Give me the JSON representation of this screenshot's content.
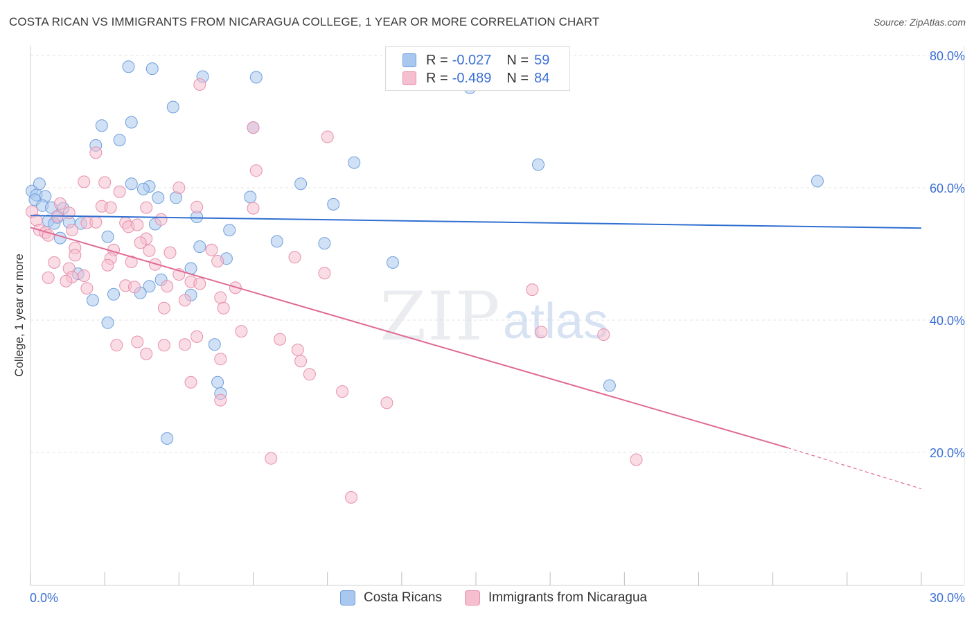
{
  "title": "COSTA RICAN VS IMMIGRANTS FROM NICARAGUA COLLEGE, 1 YEAR OR MORE CORRELATION CHART",
  "source": "Source: ZipAtlas.com",
  "watermark": {
    "zip": "ZIP",
    "atlas": "atlas"
  },
  "legend": {
    "row1": {
      "r_label": "R =",
      "r_value": "-0.027",
      "n_label": "N =",
      "n_value": "59"
    },
    "row2": {
      "r_label": "R =",
      "r_value": "-0.489",
      "n_label": "N =",
      "n_value": "84"
    }
  },
  "bottom_legend": {
    "series1": "Costa Ricans",
    "series2": "Immigrants from Nicaragua"
  },
  "colors": {
    "blue_fill": "#a9c8ef",
    "blue_stroke": "#6f9fdc",
    "blue_line": "#2f6fd0",
    "pink_fill": "#f6bfd0",
    "pink_stroke": "#e690ac",
    "pink_line": "#e06a94",
    "axis_text": "#3b6fd4",
    "grid": "#e3e3e3"
  },
  "chart_data": {
    "type": "scatter",
    "title": "COSTA RICAN VS IMMIGRANTS FROM NICARAGUA COLLEGE, 1 YEAR OR MORE CORRELATION CHART",
    "xlabel": "",
    "ylabel": "College, 1 year or more",
    "xlim": [
      0,
      30
    ],
    "ylim": [
      0,
      80
    ],
    "x_tick_labels": [
      "0.0%",
      "30.0%"
    ],
    "y_tick_labels": [
      "20.0%",
      "40.0%",
      "60.0%",
      "80.0%"
    ],
    "y_ticks": [
      20,
      40,
      60,
      80
    ],
    "grid": true,
    "legend_position": "top-center",
    "series": [
      {
        "name": "Costa Ricans",
        "color": "#a9c8ef",
        "r": -0.027,
        "n": 59,
        "trend": {
          "x": [
            0,
            30
          ],
          "y": [
            55.8,
            53.9
          ]
        },
        "points": [
          [
            0.05,
            59.5
          ],
          [
            0.3,
            60.6
          ],
          [
            0.2,
            58.9
          ],
          [
            0.5,
            58.7
          ],
          [
            0.15,
            58.2
          ],
          [
            0.4,
            57.3
          ],
          [
            0.7,
            57.0
          ],
          [
            1.1,
            56.9
          ],
          [
            0.9,
            55.5
          ],
          [
            0.6,
            55.0
          ],
          [
            1.3,
            54.8
          ],
          [
            0.8,
            54.6
          ],
          [
            1.7,
            54.6
          ],
          [
            1.0,
            52.4
          ],
          [
            2.6,
            52.6
          ],
          [
            3.3,
            78.3
          ],
          [
            4.1,
            78.0
          ],
          [
            5.8,
            76.8
          ],
          [
            7.6,
            76.7
          ],
          [
            14.8,
            75.1
          ],
          [
            4.8,
            72.2
          ],
          [
            2.4,
            69.4
          ],
          [
            3.4,
            69.9
          ],
          [
            7.5,
            69.1
          ],
          [
            3.0,
            67.2
          ],
          [
            2.2,
            66.4
          ],
          [
            10.9,
            63.8
          ],
          [
            17.1,
            63.5
          ],
          [
            3.4,
            60.6
          ],
          [
            4.0,
            60.2
          ],
          [
            9.1,
            60.6
          ],
          [
            26.5,
            61.0
          ],
          [
            3.8,
            59.8
          ],
          [
            4.3,
            58.5
          ],
          [
            4.9,
            58.5
          ],
          [
            7.4,
            58.6
          ],
          [
            10.2,
            57.5
          ],
          [
            5.6,
            55.6
          ],
          [
            4.2,
            54.5
          ],
          [
            6.7,
            53.6
          ],
          [
            8.3,
            51.9
          ],
          [
            9.9,
            51.6
          ],
          [
            5.7,
            51.1
          ],
          [
            6.6,
            49.3
          ],
          [
            12.2,
            48.7
          ],
          [
            5.4,
            47.8
          ],
          [
            1.6,
            47.0
          ],
          [
            4.4,
            46.1
          ],
          [
            4.0,
            45.1
          ],
          [
            3.7,
            44.1
          ],
          [
            2.8,
            43.9
          ],
          [
            2.1,
            43.0
          ],
          [
            5.4,
            43.8
          ],
          [
            2.6,
            39.6
          ],
          [
            6.2,
            36.3
          ],
          [
            19.5,
            30.1
          ],
          [
            6.3,
            30.6
          ],
          [
            6.4,
            28.9
          ],
          [
            4.6,
            22.1
          ]
        ]
      },
      {
        "name": "Immigrants from Nicaragua",
        "color": "#f6bfd0",
        "r": -0.489,
        "n": 84,
        "trend": {
          "x": [
            0,
            25.5
          ],
          "y": [
            54.0,
            20.7
          ]
        },
        "trend_dashed": {
          "x": [
            25.5,
            30
          ],
          "y": [
            20.7,
            14.5
          ]
        },
        "points": [
          [
            0.05,
            56.4
          ],
          [
            0.2,
            55.1
          ],
          [
            0.3,
            53.6
          ],
          [
            0.5,
            53.2
          ],
          [
            0.6,
            52.8
          ],
          [
            0.9,
            55.7
          ],
          [
            1.0,
            57.6
          ],
          [
            1.3,
            56.2
          ],
          [
            1.4,
            53.6
          ],
          [
            1.9,
            54.7
          ],
          [
            2.2,
            54.8
          ],
          [
            2.4,
            57.2
          ],
          [
            2.7,
            57.0
          ],
          [
            3.2,
            54.7
          ],
          [
            3.3,
            54.1
          ],
          [
            1.8,
            60.9
          ],
          [
            2.5,
            60.8
          ],
          [
            2.2,
            65.3
          ],
          [
            3.0,
            59.4
          ],
          [
            5.0,
            60.0
          ],
          [
            5.7,
            75.6
          ],
          [
            7.5,
            69.1
          ],
          [
            10.0,
            67.7
          ],
          [
            7.6,
            62.6
          ],
          [
            4.4,
            55.2
          ],
          [
            3.9,
            57.0
          ],
          [
            5.6,
            57.1
          ],
          [
            7.5,
            56.9
          ],
          [
            3.6,
            54.4
          ],
          [
            3.9,
            52.3
          ],
          [
            3.7,
            51.7
          ],
          [
            1.5,
            50.9
          ],
          [
            2.8,
            50.6
          ],
          [
            4.0,
            50.5
          ],
          [
            4.7,
            50.2
          ],
          [
            6.1,
            50.6
          ],
          [
            1.5,
            49.8
          ],
          [
            2.7,
            49.3
          ],
          [
            0.8,
            48.7
          ],
          [
            3.4,
            48.8
          ],
          [
            4.2,
            48.4
          ],
          [
            6.3,
            48.9
          ],
          [
            8.9,
            49.5
          ],
          [
            1.3,
            47.8
          ],
          [
            2.6,
            48.3
          ],
          [
            5.0,
            46.9
          ],
          [
            1.4,
            46.5
          ],
          [
            1.8,
            46.7
          ],
          [
            9.9,
            47.1
          ],
          [
            0.6,
            46.4
          ],
          [
            1.2,
            45.9
          ],
          [
            5.4,
            45.8
          ],
          [
            5.7,
            45.5
          ],
          [
            3.2,
            45.2
          ],
          [
            1.9,
            44.8
          ],
          [
            3.5,
            45.0
          ],
          [
            4.6,
            45.1
          ],
          [
            6.9,
            44.9
          ],
          [
            16.9,
            44.6
          ],
          [
            6.4,
            43.4
          ],
          [
            5.2,
            43.0
          ],
          [
            6.5,
            41.8
          ],
          [
            4.5,
            41.8
          ],
          [
            7.1,
            38.3
          ],
          [
            17.2,
            38.2
          ],
          [
            19.3,
            37.8
          ],
          [
            5.6,
            37.5
          ],
          [
            8.4,
            37.1
          ],
          [
            3.6,
            36.7
          ],
          [
            2.9,
            36.2
          ],
          [
            4.5,
            36.2
          ],
          [
            5.2,
            36.3
          ],
          [
            9.0,
            35.5
          ],
          [
            3.9,
            34.9
          ],
          [
            6.4,
            34.1
          ],
          [
            9.1,
            33.8
          ],
          [
            9.4,
            31.8
          ],
          [
            5.4,
            30.6
          ],
          [
            10.5,
            29.2
          ],
          [
            6.4,
            27.9
          ],
          [
            12.0,
            27.5
          ],
          [
            8.1,
            19.1
          ],
          [
            20.4,
            18.9
          ],
          [
            10.8,
            13.2
          ]
        ]
      }
    ]
  }
}
